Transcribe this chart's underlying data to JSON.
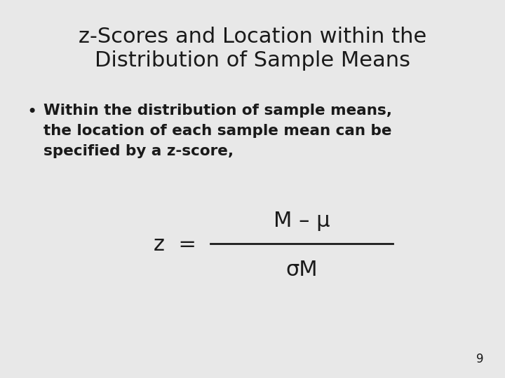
{
  "title_line1": "z-Scores and Location within the",
  "title_line2": "Distribution of Sample Means",
  "bullet_text_line1": "Within the distribution of sample means,",
  "bullet_text_line2": "the location of each sample mean can be",
  "bullet_text_line3": "specified by a z-score,",
  "formula_z": "z  =",
  "formula_numerator": "M – μ",
  "formula_denominator": "σM",
  "page_number": "9",
  "bg_color": "#e8e8e8",
  "text_color": "#1a1a1a",
  "title_fontsize": 22,
  "body_fontsize": 15.5,
  "formula_fontsize": 19,
  "page_num_fontsize": 12
}
